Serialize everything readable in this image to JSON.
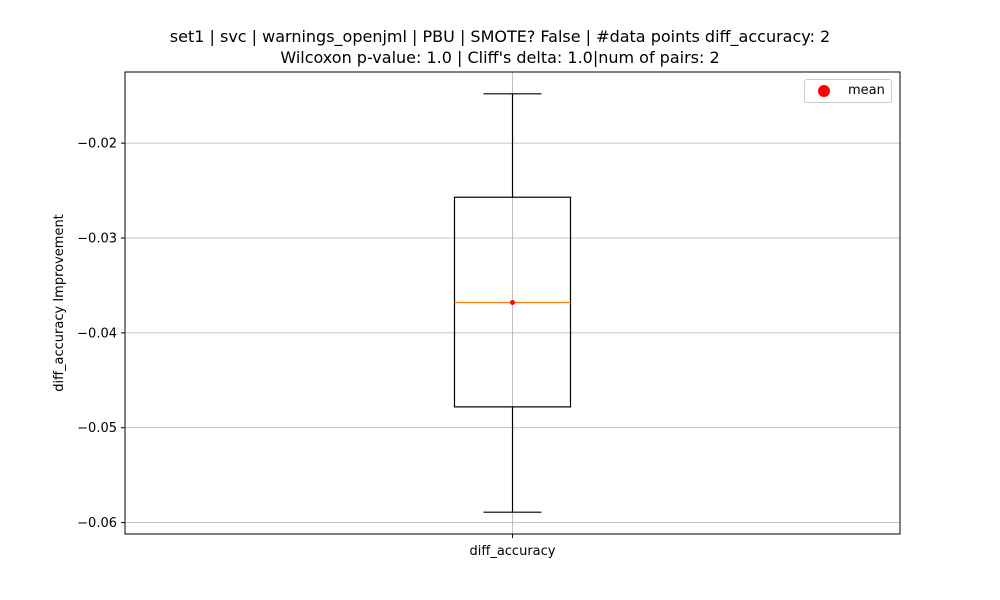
{
  "chart_data": {
    "type": "box",
    "title_lines": [
      "set1 | svc | warnings_openjml | PBU | SMOTE? False | #data points diff_accuracy: 2",
      "Wilcoxon p-value: 1.0 | Cliff's delta: 1.0|num of pairs: 2"
    ],
    "xlabel": "",
    "ylabel": "diff_accuracy Improvement",
    "categories": [
      "diff_accuracy"
    ],
    "ylim": [
      -0.0612,
      -0.0125
    ],
    "yticks": [
      -0.02,
      -0.03,
      -0.04,
      -0.05,
      -0.06
    ],
    "ytick_labels": [
      "−0.02",
      "−0.03",
      "−0.04",
      "−0.05",
      "−0.06"
    ],
    "box": {
      "whisker_low": -0.0589,
      "q1": -0.0478,
      "median": -0.0368,
      "q3": -0.0257,
      "whisker_high": -0.0148,
      "mean": -0.0368
    },
    "grid": true,
    "legend": {
      "position": "top-right",
      "entries": [
        {
          "label": "mean",
          "color": "#ff0000"
        }
      ]
    },
    "colors": {
      "box": "#000000",
      "median": "#ff7f0e",
      "mean": "#ff0000",
      "grid": "#b0b0b0"
    }
  }
}
